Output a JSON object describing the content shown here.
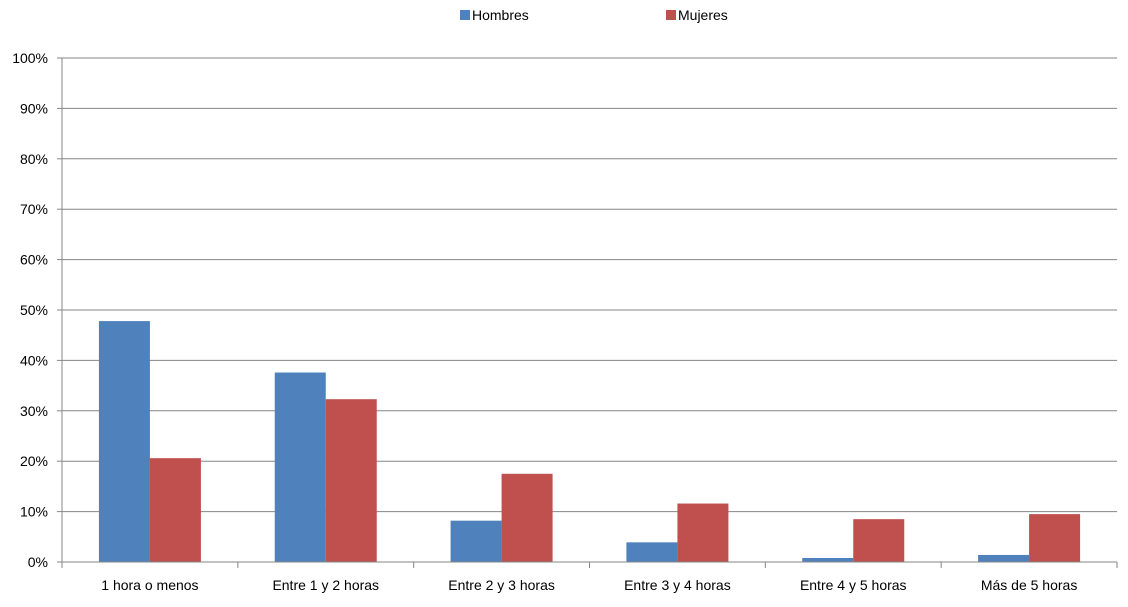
{
  "chart_data": {
    "type": "bar",
    "categories": [
      "1 hora o menos",
      "Entre 1 y 2 horas",
      "Entre 2 y 3 horas",
      "Entre 3 y 4 horas",
      "Entre 4 y 5 horas",
      "Más de 5 horas"
    ],
    "series": [
      {
        "name": "Hombres",
        "color": "#4F81BD",
        "values": [
          47.8,
          37.6,
          8.2,
          3.9,
          0.8,
          1.4
        ]
      },
      {
        "name": "Mujeres",
        "color": "#C0504D",
        "values": [
          20.6,
          32.3,
          17.5,
          11.6,
          8.5,
          9.5
        ]
      }
    ],
    "y_ticks": [
      "0%",
      "10%",
      "20%",
      "30%",
      "40%",
      "50%",
      "60%",
      "70%",
      "80%",
      "90%",
      "100%"
    ],
    "ylim": [
      0,
      100
    ],
    "grid": true,
    "legend_position": "top",
    "gridline_color": "#868686",
    "axis_color": "#868686"
  }
}
